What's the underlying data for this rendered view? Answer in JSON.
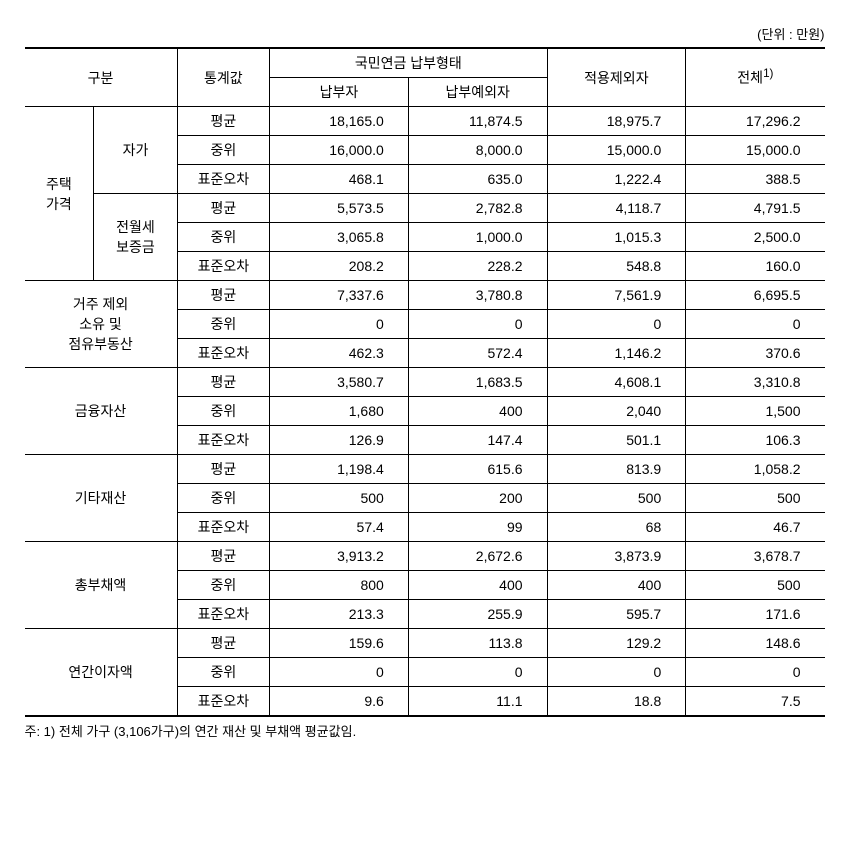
{
  "unit_label": "(단위 : 만원)",
  "header": {
    "category": "구분",
    "stat": "통계값",
    "group": "국민연금 납부형태",
    "col1": "납부자",
    "col2": "납부예외자",
    "col3": "적용제외자",
    "col4": "전체",
    "col4_sup": "1)"
  },
  "stat_labels": {
    "mean": "평균",
    "median": "중위",
    "se": "표준오차"
  },
  "sections": {
    "housing": {
      "label": "주택\n가격",
      "sub": {
        "own": {
          "label": "자가",
          "rows": {
            "mean": [
              "18,165.0",
              "11,874.5",
              "18,975.7",
              "17,296.2"
            ],
            "median": [
              "16,000.0",
              "8,000.0",
              "15,000.0",
              "15,000.0"
            ],
            "se": [
              "468.1",
              "635.0",
              "1,222.4",
              "388.5"
            ]
          }
        },
        "rent": {
          "label": "전월세\n보증금",
          "rows": {
            "mean": [
              "5,573.5",
              "2,782.8",
              "4,118.7",
              "4,791.5"
            ],
            "median": [
              "3,065.8",
              "1,000.0",
              "1,015.3",
              "2,500.0"
            ],
            "se": [
              "208.2",
              "228.2",
              "548.8",
              "160.0"
            ]
          }
        }
      }
    },
    "other_real": {
      "label": "거주 제외\n소유 및\n점유부동산",
      "rows": {
        "mean": [
          "7,337.6",
          "3,780.8",
          "7,561.9",
          "6,695.5"
        ],
        "median": [
          "0",
          "0",
          "0",
          "0"
        ],
        "se": [
          "462.3",
          "572.4",
          "1,146.2",
          "370.6"
        ]
      }
    },
    "fin": {
      "label": "금융자산",
      "rows": {
        "mean": [
          "3,580.7",
          "1,683.5",
          "4,608.1",
          "3,310.8"
        ],
        "median": [
          "1,680",
          "400",
          "2,040",
          "1,500"
        ],
        "se": [
          "126.9",
          "147.4",
          "501.1",
          "106.3"
        ]
      }
    },
    "etc": {
      "label": "기타재산",
      "rows": {
        "mean": [
          "1,198.4",
          "615.6",
          "813.9",
          "1,058.2"
        ],
        "median": [
          "500",
          "200",
          "500",
          "500"
        ],
        "se": [
          "57.4",
          "99",
          "68",
          "46.7"
        ]
      }
    },
    "debt": {
      "label": "총부채액",
      "rows": {
        "mean": [
          "3,913.2",
          "2,672.6",
          "3,873.9",
          "3,678.7"
        ],
        "median": [
          "800",
          "400",
          "400",
          "500"
        ],
        "se": [
          "213.3",
          "255.9",
          "595.7",
          "171.6"
        ]
      }
    },
    "interest": {
      "label": "연간이자액",
      "rows": {
        "mean": [
          "159.6",
          "113.8",
          "129.2",
          "148.6"
        ],
        "median": [
          "0",
          "0",
          "0",
          "0"
        ],
        "se": [
          "9.6",
          "11.1",
          "18.8",
          "7.5"
        ]
      }
    }
  },
  "footnote": "주: 1) 전체 가구 (3,106가구)의 연간 재산 및 부채액 평균값임."
}
